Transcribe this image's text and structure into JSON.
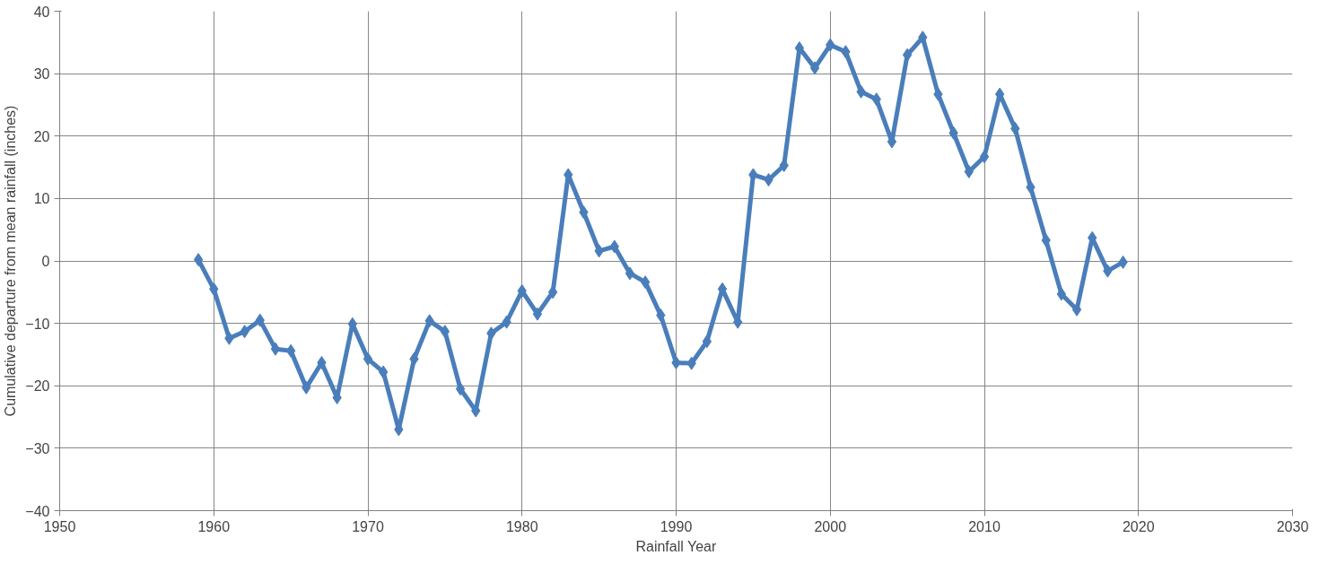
{
  "chart_data": {
    "type": "line",
    "xlabel": "Rainfall Year",
    "ylabel": "Cumulative departure from mean rainfall (inches)",
    "x": [
      1959,
      1960,
      1961,
      1962,
      1963,
      1964,
      1965,
      1966,
      1967,
      1968,
      1969,
      1970,
      1971,
      1972,
      1973,
      1974,
      1975,
      1976,
      1977,
      1978,
      1979,
      1980,
      1981,
      1982,
      1983,
      1984,
      1985,
      1986,
      1987,
      1988,
      1989,
      1990,
      1991,
      1992,
      1993,
      1994,
      1995,
      1996,
      1997,
      1998,
      1999,
      2000,
      2001,
      2002,
      2003,
      2004,
      2005,
      2006,
      2007,
      2008,
      2009,
      2010,
      2011,
      2012,
      2013,
      2014,
      2015,
      2016,
      2017,
      2018,
      2019
    ],
    "series": [
      {
        "color": "#4a7ebb",
        "values": [
          0.2,
          -4.5,
          -12.4,
          -11.3,
          -9.5,
          -14.1,
          -14.4,
          -20.3,
          -16.3,
          -21.9,
          -10.1,
          -15.7,
          -17.8,
          -27,
          -15.7,
          -9.6,
          -11.3,
          -20.5,
          -24,
          -11.6,
          -9.8,
          -4.8,
          -8.5,
          -5,
          13.8,
          7.8,
          1.6,
          2.3,
          -2,
          -3.4,
          -8.7,
          -16.3,
          -16.4,
          -12.9,
          -4.5,
          -9.8,
          13.8,
          13,
          15.3,
          34.1,
          30.9,
          34.6,
          33.5,
          27.1,
          25.9,
          19.1,
          33,
          35.8,
          26.7,
          20.5,
          14.3,
          16.7,
          26.7,
          21.2,
          11.8,
          3.3,
          -5.3,
          -7.8,
          3.7,
          -1.6,
          -0.2
        ]
      }
    ],
    "xlim": [
      1950,
      2030
    ],
    "xticks": [
      1950,
      1960,
      1970,
      1980,
      1990,
      2000,
      2010,
      2020,
      2030
    ],
    "ylim": [
      -40,
      40
    ],
    "yticks": [
      -40,
      -30,
      -20,
      -10,
      0,
      10,
      20,
      30,
      40
    ],
    "grid": true,
    "marker": "diamond",
    "line_style": "solid"
  }
}
